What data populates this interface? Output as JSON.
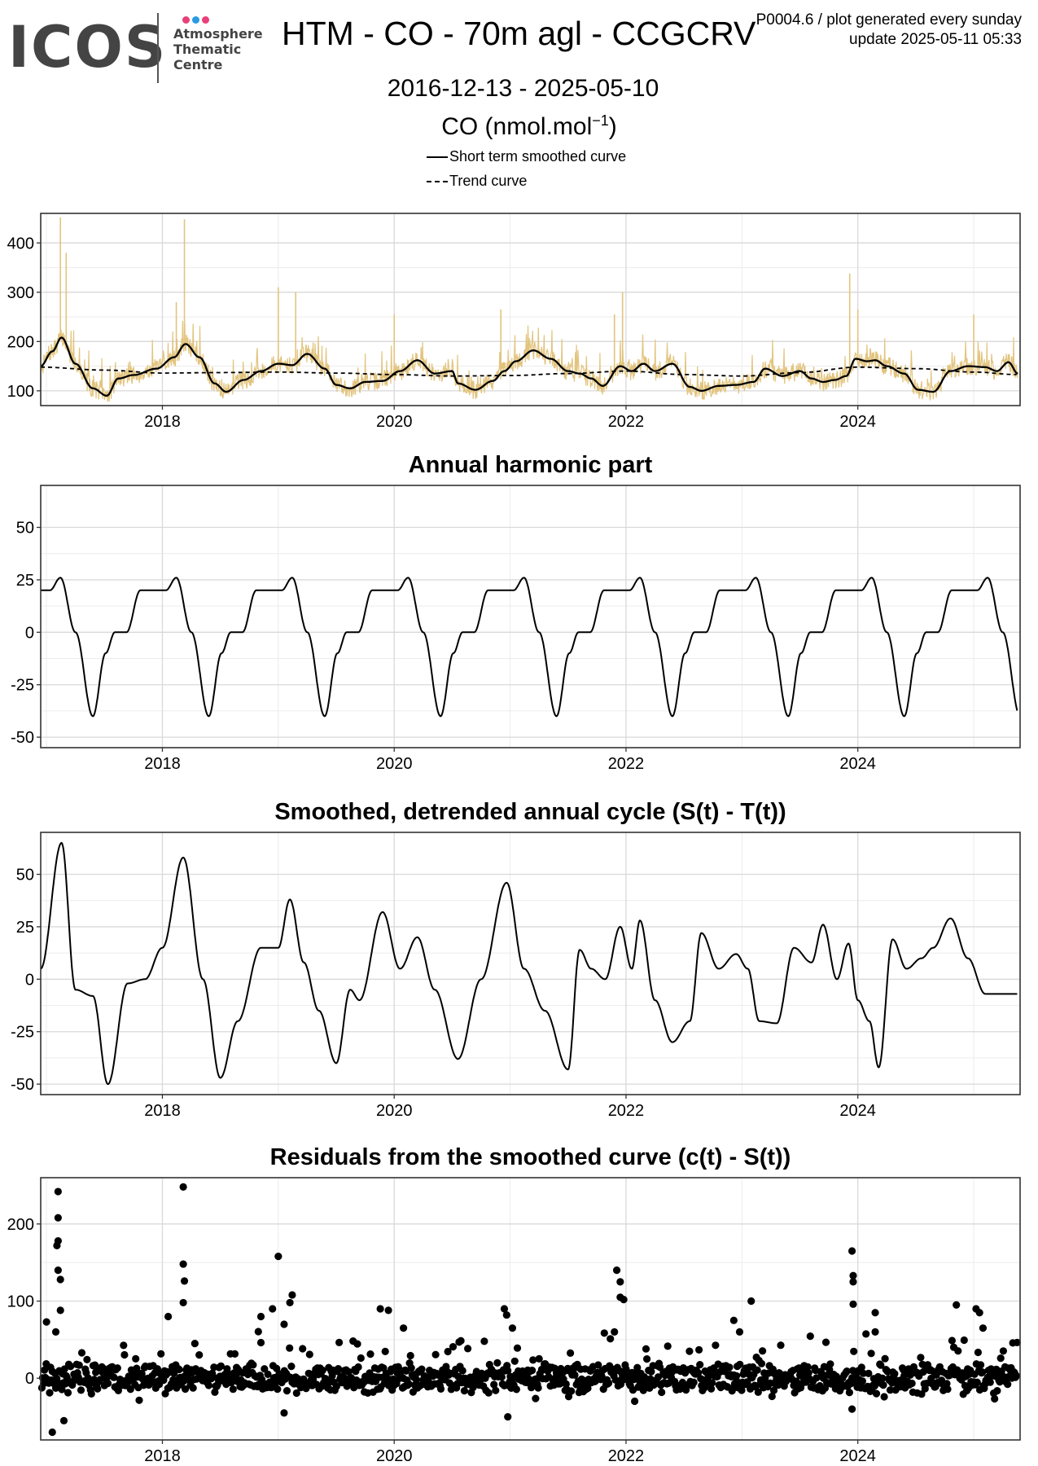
{
  "header": {
    "logo_word": "ICOS",
    "logo_sub": [
      "Atmosphere",
      "Thematic",
      "Centre"
    ],
    "title": "HTM - CO - 70m agl - CCGCRV",
    "date_range": "2016-12-13 - 2025-05-10",
    "units_prefix": "CO (nmol.mol",
    "units_sup": "−1",
    "units_suffix": ")",
    "meta_line1": "P0004.6 / plot generated every sunday",
    "meta_line2": "update  2025-05-11 05:33",
    "legend": [
      {
        "label": "Short term smoothed curve",
        "style": "solid"
      },
      {
        "label": "Trend curve",
        "style": "dashed"
      }
    ],
    "colors": {
      "raw": "#e2c47e",
      "line": "#000000",
      "grid": "#d9d9d9",
      "brand_pink": "#e8407a",
      "brand_blue": "#2a9be2"
    }
  },
  "chart_data": [
    {
      "type": "line",
      "title": "",
      "xlim": [
        2016.95,
        2025.4
      ],
      "ylim": [
        70,
        460
      ],
      "yticks": [
        100,
        200,
        300,
        400
      ],
      "xticks": [
        2018,
        2020,
        2022,
        2024
      ],
      "series": [
        {
          "name": "Short term smoothed curve",
          "style": "solid",
          "x": [
            2016.95,
            2017.05,
            2017.13,
            2017.25,
            2017.4,
            2017.52,
            2017.62,
            2017.75,
            2017.95,
            2018.1,
            2018.2,
            2018.32,
            2018.45,
            2018.55,
            2018.7,
            2018.85,
            2019.0,
            2019.12,
            2019.25,
            2019.4,
            2019.5,
            2019.62,
            2019.75,
            2019.9,
            2020.05,
            2020.2,
            2020.35,
            2020.5,
            2020.55,
            2020.7,
            2020.85,
            2020.95,
            2021.05,
            2021.2,
            2021.35,
            2021.5,
            2021.6,
            2021.7,
            2021.8,
            2021.95,
            2022.05,
            2022.15,
            2022.25,
            2022.4,
            2022.55,
            2022.65,
            2022.8,
            2022.95,
            2023.1,
            2023.2,
            2023.35,
            2023.5,
            2023.6,
            2023.7,
            2023.8,
            2023.9,
            2023.98,
            2024.08,
            2024.15,
            2024.25,
            2024.4,
            2024.52,
            2024.65,
            2024.8,
            2024.95,
            2025.1,
            2025.2,
            2025.3,
            2025.38
          ],
          "y": [
            150,
            180,
            208,
            155,
            105,
            90,
            125,
            132,
            145,
            168,
            195,
            168,
            115,
            98,
            122,
            140,
            155,
            152,
            175,
            145,
            112,
            105,
            118,
            120,
            140,
            162,
            135,
            140,
            115,
            102,
            120,
            140,
            160,
            182,
            165,
            140,
            135,
            125,
            110,
            150,
            140,
            155,
            140,
            155,
            108,
            100,
            110,
            112,
            118,
            145,
            130,
            140,
            125,
            118,
            122,
            130,
            165,
            160,
            162,
            150,
            135,
            102,
            98,
            140,
            150,
            148,
            140,
            158,
            135
          ]
        },
        {
          "name": "Trend curve",
          "style": "dashed",
          "x": [
            2016.95,
            2017.5,
            2018.0,
            2018.5,
            2019.0,
            2019.5,
            2020.0,
            2020.5,
            2021.0,
            2021.5,
            2022.0,
            2022.5,
            2023.0,
            2023.5,
            2024.0,
            2024.5,
            2025.0,
            2025.38
          ],
          "y": [
            148,
            142,
            136,
            137,
            138,
            136,
            133,
            130,
            131,
            135,
            140,
            133,
            130,
            137,
            148,
            145,
            138,
            133
          ]
        }
      ]
    },
    {
      "type": "line",
      "title": "Annual harmonic part",
      "xlim": [
        2016.95,
        2025.4
      ],
      "ylim": [
        -55,
        70
      ],
      "yticks": [
        -50,
        -25,
        0,
        25,
        50
      ],
      "xticks": [
        2018,
        2020,
        2022,
        2024
      ],
      "pattern_year": {
        "phase": [
          0.0,
          0.08,
          0.17,
          0.3,
          0.45,
          0.56,
          0.64,
          0.74,
          0.86,
          1.0
        ],
        "value": [
          20,
          20,
          26,
          0,
          -40,
          -10,
          0,
          0,
          20,
          20
        ]
      }
    },
    {
      "type": "line",
      "title": "Smoothed, detrended annual cycle (S(t) - T(t))",
      "xlim": [
        2016.95,
        2025.4
      ],
      "ylim": [
        -55,
        70
      ],
      "yticks": [
        -50,
        -25,
        0,
        25,
        50
      ],
      "xticks": [
        2018,
        2020,
        2022,
        2024
      ],
      "x": [
        2016.95,
        2017.13,
        2017.25,
        2017.4,
        2017.53,
        2017.7,
        2017.85,
        2018.0,
        2018.18,
        2018.35,
        2018.5,
        2018.65,
        2018.85,
        2019.0,
        2019.1,
        2019.22,
        2019.35,
        2019.5,
        2019.62,
        2019.7,
        2019.9,
        2020.05,
        2020.2,
        2020.35,
        2020.55,
        2020.75,
        2020.97,
        2021.12,
        2021.3,
        2021.5,
        2021.6,
        2021.7,
        2021.82,
        2021.95,
        2022.05,
        2022.12,
        2022.25,
        2022.4,
        2022.55,
        2022.65,
        2022.8,
        2022.95,
        2023.05,
        2023.15,
        2023.3,
        2023.45,
        2023.6,
        2023.7,
        2023.82,
        2023.92,
        2024.0,
        2024.1,
        2024.18,
        2024.3,
        2024.42,
        2024.55,
        2024.65,
        2024.8,
        2024.95,
        2025.1,
        2025.2,
        2025.3,
        2025.38
      ],
      "y": [
        5,
        65,
        -5,
        -8,
        -50,
        -2,
        0,
        15,
        58,
        0,
        -47,
        -20,
        15,
        15,
        38,
        8,
        -15,
        -40,
        -5,
        -10,
        32,
        5,
        20,
        -5,
        -38,
        0,
        46,
        5,
        -15,
        -43,
        14,
        5,
        0,
        25,
        5,
        28,
        -10,
        -30,
        -20,
        22,
        5,
        12,
        5,
        -20,
        -21,
        15,
        8,
        26,
        0,
        17,
        -10,
        -20,
        -42,
        19,
        5,
        10,
        15,
        29,
        10,
        -7,
        -7,
        -7,
        -7
      ]
    },
    {
      "type": "scatter",
      "title": "Residuals from the smoothed curve (c(t) - S(t))",
      "xlim": [
        2016.95,
        2025.4
      ],
      "ylim": [
        -80,
        260
      ],
      "yticks": [
        0,
        100,
        200
      ],
      "xticks": [
        2018,
        2020,
        2022,
        2024
      ],
      "spikes": [
        {
          "x": 2017.1,
          "y": 242
        },
        {
          "x": 2017.1,
          "y": 208
        },
        {
          "x": 2017.1,
          "y": 178
        },
        {
          "x": 2017.09,
          "y": 172
        },
        {
          "x": 2017.1,
          "y": 140
        },
        {
          "x": 2017.12,
          "y": 128
        },
        {
          "x": 2017.12,
          "y": 88
        },
        {
          "x": 2017.08,
          "y": 60
        },
        {
          "x": 2017.0,
          "y": 73
        },
        {
          "x": 2018.18,
          "y": 248
        },
        {
          "x": 2018.18,
          "y": 148
        },
        {
          "x": 2018.19,
          "y": 126
        },
        {
          "x": 2018.18,
          "y": 98
        },
        {
          "x": 2018.05,
          "y": 80
        },
        {
          "x": 2018.28,
          "y": 45
        },
        {
          "x": 2019.0,
          "y": 158
        },
        {
          "x": 2019.12,
          "y": 108
        },
        {
          "x": 2019.1,
          "y": 98
        },
        {
          "x": 2018.95,
          "y": 90
        },
        {
          "x": 2018.85,
          "y": 80
        },
        {
          "x": 2019.05,
          "y": 70
        },
        {
          "x": 2019.88,
          "y": 90
        },
        {
          "x": 2019.95,
          "y": 88
        },
        {
          "x": 2020.08,
          "y": 65
        },
        {
          "x": 2020.95,
          "y": 90
        },
        {
          "x": 2020.97,
          "y": 82
        },
        {
          "x": 2021.02,
          "y": 65
        },
        {
          "x": 2021.92,
          "y": 140
        },
        {
          "x": 2021.95,
          "y": 125
        },
        {
          "x": 2021.95,
          "y": 105
        },
        {
          "x": 2021.98,
          "y": 102
        },
        {
          "x": 2021.9,
          "y": 60
        },
        {
          "x": 2023.08,
          "y": 100
        },
        {
          "x": 2022.93,
          "y": 75
        },
        {
          "x": 2022.98,
          "y": 60
        },
        {
          "x": 2023.95,
          "y": 165
        },
        {
          "x": 2023.96,
          "y": 133
        },
        {
          "x": 2023.96,
          "y": 125
        },
        {
          "x": 2023.96,
          "y": 96
        },
        {
          "x": 2024.15,
          "y": 85
        },
        {
          "x": 2024.15,
          "y": 60
        },
        {
          "x": 2024.85,
          "y": 95
        },
        {
          "x": 2025.02,
          "y": 90
        },
        {
          "x": 2025.05,
          "y": 85
        },
        {
          "x": 2025.08,
          "y": 65
        },
        {
          "x": 2017.05,
          "y": -70
        },
        {
          "x": 2017.15,
          "y": -55
        },
        {
          "x": 2020.98,
          "y": -50
        },
        {
          "x": 2019.05,
          "y": -45
        },
        {
          "x": 2023.95,
          "y": -40
        }
      ]
    }
  ]
}
